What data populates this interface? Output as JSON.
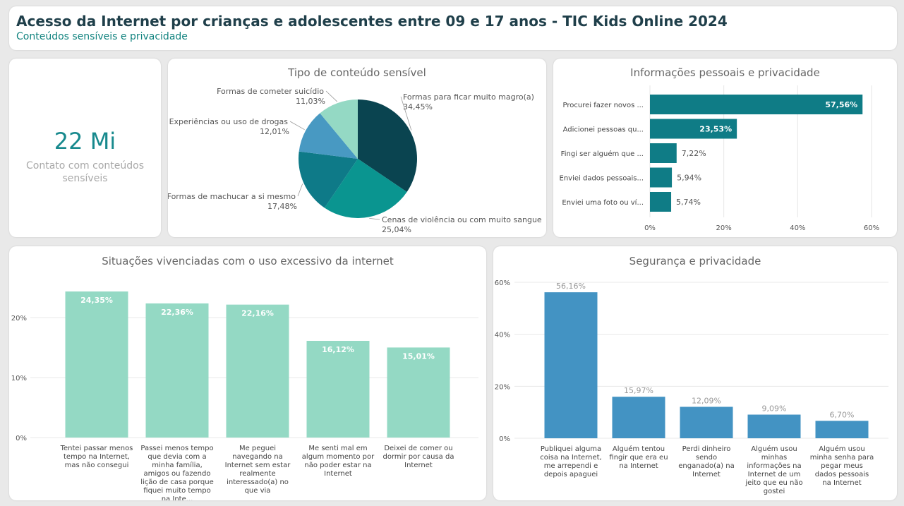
{
  "header": {
    "title": "Acesso da Internet por crianças e adolescentes entre 09 e 17 anos - TIC Kids Online 2024",
    "subtitle": "Conteúdos sensíveis e privacidade"
  },
  "kpi": {
    "value": "22 Mi",
    "label": "Contato com conteúdos sensíveis"
  },
  "colors": {
    "pie": [
      "#0a4450",
      "#0a9590",
      "#0e7a88",
      "#4899c2",
      "#94d9c4"
    ],
    "hbar": "#0f7c86",
    "vbar1": "#94d9c4",
    "vbar2": "#4393c3"
  },
  "chart_data": [
    {
      "type": "pie",
      "title": "Tipo de conteúdo sensível",
      "labels": [
        "Formas para ficar muito magro(a)",
        "Cenas de violência ou com muito sangue",
        "Formas de machucar a si mesmo",
        "Experiências ou uso de drogas",
        "Formas de cometer suicídio"
      ],
      "values": [
        34.45,
        25.04,
        17.48,
        12.01,
        11.03
      ],
      "value_labels": [
        "34,45%",
        "25,04%",
        "17,48%",
        "12,01%",
        "11,03%"
      ]
    },
    {
      "type": "bar",
      "orientation": "horizontal",
      "title": "Informações pessoais e privacidade",
      "categories": [
        "Procurei fazer novos ...",
        "Adicionei pessoas qu...",
        "Fingi ser alguém que ...",
        "Enviei dados pessoais...",
        "Enviei uma foto ou ví..."
      ],
      "values": [
        57.56,
        23.53,
        7.22,
        5.94,
        5.74
      ],
      "value_labels": [
        "57,56%",
        "23,53%",
        "7,22%",
        "5,94%",
        "5,74%"
      ],
      "xlim": [
        0,
        60
      ],
      "ticks": [
        "0%",
        "20%",
        "40%",
        "60%"
      ]
    },
    {
      "type": "bar",
      "title": "Situações vivenciadas com o uso excessivo da internet",
      "categories": [
        "Tentei passar menos tempo na Internet, mas não consegui",
        "Passei menos tempo que devia com a minha família, amigos ou fazendo lição de casa porque fiquei muito tempo na Inte...",
        "Me peguei navegando na Internet sem estar realmente interessado(a) no que via",
        "Me senti mal em algum momento por não poder estar na Internet",
        "Deixei de comer ou dormir por causa da Internet"
      ],
      "values": [
        24.35,
        22.36,
        22.16,
        16.12,
        15.01
      ],
      "value_labels": [
        "24,35%",
        "22,36%",
        "22,16%",
        "16,12%",
        "15,01%"
      ],
      "ylim": [
        0,
        25
      ],
      "ticks": [
        "0%",
        "10%",
        "20%"
      ]
    },
    {
      "type": "bar",
      "title": "Segurança e privacidade",
      "categories": [
        "Publiquei alguma coisa na Internet, me arrependi e depois apaguei",
        "Alguém tentou fingir que era eu na Internet",
        "Perdi dinheiro sendo enganado(a) na Internet",
        "Alguém usou minhas informações na Internet de um jeito que eu não gostei",
        "Alguém usou minha senha para pegar meus dados pessoais na Internet"
      ],
      "values": [
        56.16,
        15.97,
        12.09,
        9.09,
        6.7
      ],
      "value_labels": [
        "56,16%",
        "15,97%",
        "12,09%",
        "9,09%",
        "6,70%"
      ],
      "ylim": [
        0,
        60
      ],
      "ticks": [
        "0%",
        "20%",
        "40%",
        "60%"
      ]
    }
  ]
}
